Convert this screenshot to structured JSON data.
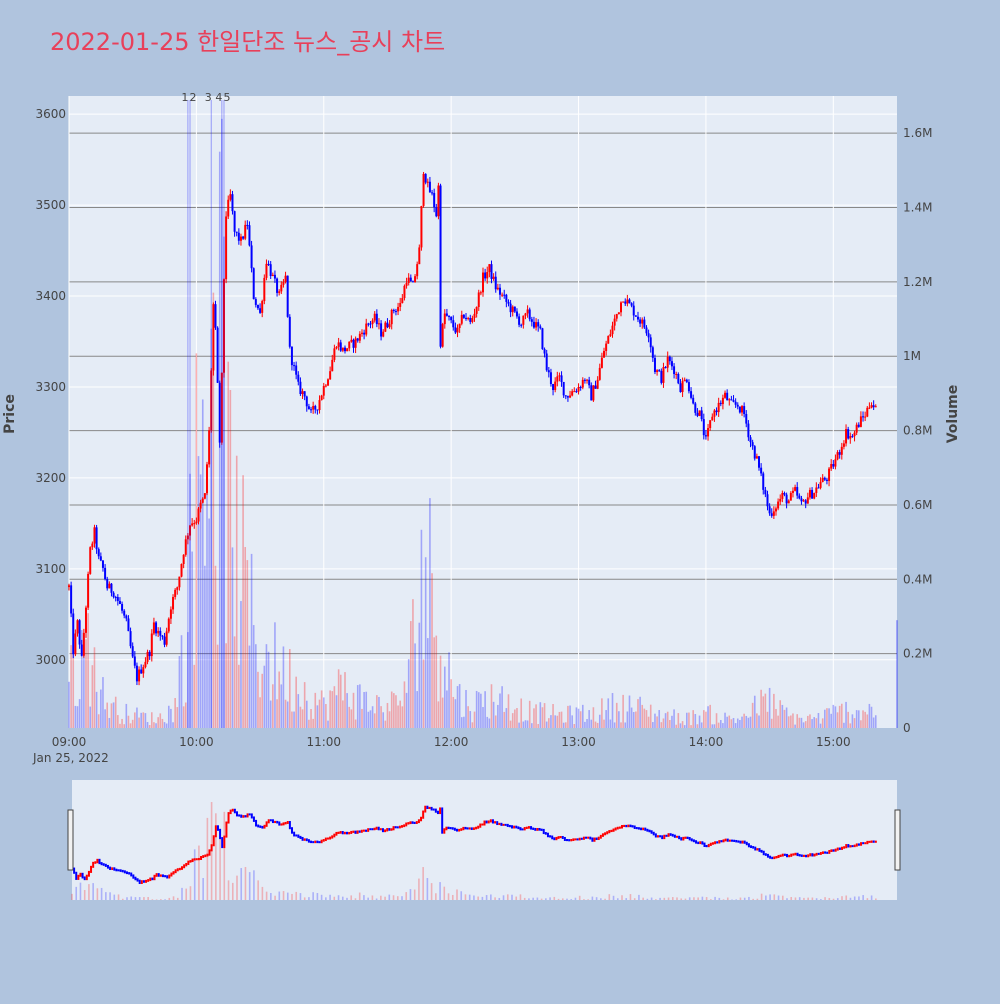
{
  "title": "2022-01-25 한일단조 뉴스_공시 차트",
  "colors": {
    "page_bg": "#b0c4de",
    "plot_bg": "#e5ecf6",
    "title": "#e8405a",
    "up": "#ff0000",
    "down": "#0000ff",
    "gridline": "#ffffff",
    "volume_grid": "#888888",
    "axis_text": "#444444"
  },
  "chart_data": {
    "type": "candlestick",
    "title": "2022-01-25 한일단조 뉴스_공시 차트",
    "date_label": "Jan 25, 2022",
    "x_ticks": [
      "09:00",
      "10:00",
      "11:00",
      "12:00",
      "13:00",
      "14:00",
      "15:00"
    ],
    "x_range": [
      "09:00",
      "15:30"
    ],
    "price_axis": {
      "label": "Price",
      "ticks": [
        3000,
        3100,
        3200,
        3300,
        3400,
        3500,
        3600
      ],
      "range": [
        2925,
        3620
      ]
    },
    "volume_axis": {
      "label": "Volume",
      "ticks": [
        "0",
        "0.2M",
        "0.4M",
        "0.6M",
        "0.8M",
        "1M",
        "1.2M",
        "1.4M",
        "1.6M"
      ],
      "tick_values": [
        0,
        200000,
        400000,
        600000,
        800000,
        1000000,
        1200000,
        1400000,
        1600000
      ],
      "range": [
        0,
        1700000
      ]
    },
    "news_markers": [
      {
        "label": "1",
        "time": "09:56"
      },
      {
        "label": "2",
        "time": "09:57"
      },
      {
        "label": "3",
        "time": "10:07"
      },
      {
        "label": "4",
        "time": "10:12"
      },
      {
        "label": "5",
        "time": "10:13"
      }
    ],
    "price_path": [
      [
        "09:00",
        3080
      ],
      [
        "09:02",
        3010
      ],
      [
        "09:04",
        3040
      ],
      [
        "09:06",
        3000
      ],
      [
        "09:08",
        3060
      ],
      [
        "09:10",
        3120
      ],
      [
        "09:12",
        3140
      ],
      [
        "09:14",
        3110
      ],
      [
        "09:16",
        3100
      ],
      [
        "09:18",
        3080
      ],
      [
        "09:21",
        3075
      ],
      [
        "09:24",
        3060
      ],
      [
        "09:27",
        3040
      ],
      [
        "09:30",
        3000
      ],
      [
        "09:32",
        2980
      ],
      [
        "09:34",
        2990
      ],
      [
        "09:38",
        3010
      ],
      [
        "09:40",
        3040
      ],
      [
        "09:42",
        3030
      ],
      [
        "09:45",
        3020
      ],
      [
        "09:48",
        3060
      ],
      [
        "09:51",
        3080
      ],
      [
        "09:54",
        3120
      ],
      [
        "09:57",
        3150
      ],
      [
        "10:00",
        3155
      ],
      [
        "10:02",
        3170
      ],
      [
        "10:04",
        3180
      ],
      [
        "10:06",
        3250
      ],
      [
        "10:07",
        3320
      ],
      [
        "10:08",
        3390
      ],
      [
        "10:09",
        3360
      ],
      [
        "10:10",
        3300
      ],
      [
        "10:11",
        3240
      ],
      [
        "10:12",
        3310
      ],
      [
        "10:13",
        3420
      ],
      [
        "10:14",
        3490
      ],
      [
        "10:16",
        3510
      ],
      [
        "10:18",
        3470
      ],
      [
        "10:21",
        3460
      ],
      [
        "10:24",
        3480
      ],
      [
        "10:27",
        3400
      ],
      [
        "10:30",
        3380
      ],
      [
        "10:33",
        3440
      ],
      [
        "10:36",
        3420
      ],
      [
        "10:39",
        3400
      ],
      [
        "10:42",
        3420
      ],
      [
        "10:44",
        3340
      ],
      [
        "10:46",
        3320
      ],
      [
        "10:48",
        3300
      ],
      [
        "10:51",
        3290
      ],
      [
        "10:54",
        3270
      ],
      [
        "10:57",
        3280
      ],
      [
        "11:00",
        3300
      ],
      [
        "11:03",
        3320
      ],
      [
        "11:06",
        3350
      ],
      [
        "11:09",
        3340
      ],
      [
        "11:12",
        3345
      ],
      [
        "11:15",
        3350
      ],
      [
        "11:18",
        3360
      ],
      [
        "11:21",
        3370
      ],
      [
        "11:24",
        3375
      ],
      [
        "11:27",
        3360
      ],
      [
        "11:30",
        3370
      ],
      [
        "11:33",
        3385
      ],
      [
        "11:36",
        3390
      ],
      [
        "11:39",
        3420
      ],
      [
        "11:42",
        3410
      ],
      [
        "11:45",
        3450
      ],
      [
        "11:47",
        3540
      ],
      [
        "11:49",
        3520
      ],
      [
        "11:51",
        3510
      ],
      [
        "11:53",
        3490
      ],
      [
        "11:54",
        3520
      ],
      [
        "11:55",
        3350
      ],
      [
        "11:57",
        3380
      ],
      [
        "12:00",
        3370
      ],
      [
        "12:03",
        3360
      ],
      [
        "12:06",
        3380
      ],
      [
        "12:09",
        3370
      ],
      [
        "12:12",
        3390
      ],
      [
        "12:15",
        3420
      ],
      [
        "12:18",
        3430
      ],
      [
        "12:21",
        3410
      ],
      [
        "12:24",
        3400
      ],
      [
        "12:27",
        3390
      ],
      [
        "12:30",
        3380
      ],
      [
        "12:33",
        3370
      ],
      [
        "12:36",
        3380
      ],
      [
        "12:39",
        3370
      ],
      [
        "12:42",
        3360
      ],
      [
        "12:45",
        3320
      ],
      [
        "12:48",
        3300
      ],
      [
        "12:51",
        3310
      ],
      [
        "12:54",
        3290
      ],
      [
        "12:57",
        3295
      ],
      [
        "13:00",
        3300
      ],
      [
        "13:03",
        3310
      ],
      [
        "13:06",
        3290
      ],
      [
        "13:09",
        3310
      ],
      [
        "13:12",
        3340
      ],
      [
        "13:15",
        3360
      ],
      [
        "13:18",
        3380
      ],
      [
        "13:21",
        3400
      ],
      [
        "13:24",
        3390
      ],
      [
        "13:27",
        3380
      ],
      [
        "13:30",
        3370
      ],
      [
        "13:33",
        3360
      ],
      [
        "13:36",
        3320
      ],
      [
        "13:39",
        3310
      ],
      [
        "13:42",
        3330
      ],
      [
        "13:45",
        3320
      ],
      [
        "13:48",
        3300
      ],
      [
        "13:51",
        3310
      ],
      [
        "13:54",
        3280
      ],
      [
        "13:57",
        3270
      ],
      [
        "14:00",
        3240
      ],
      [
        "14:03",
        3270
      ],
      [
        "14:06",
        3280
      ],
      [
        "14:09",
        3290
      ],
      [
        "14:12",
        3280
      ],
      [
        "14:15",
        3280
      ],
      [
        "14:18",
        3270
      ],
      [
        "14:21",
        3240
      ],
      [
        "14:24",
        3220
      ],
      [
        "14:27",
        3190
      ],
      [
        "14:30",
        3160
      ],
      [
        "14:33",
        3170
      ],
      [
        "14:36",
        3180
      ],
      [
        "14:39",
        3175
      ],
      [
        "14:42",
        3185
      ],
      [
        "14:45",
        3170
      ],
      [
        "14:48",
        3180
      ],
      [
        "14:51",
        3185
      ],
      [
        "14:54",
        3195
      ],
      [
        "14:57",
        3200
      ],
      [
        "15:00",
        3215
      ],
      [
        "15:03",
        3230
      ],
      [
        "15:06",
        3250
      ],
      [
        "15:09",
        3245
      ],
      [
        "15:12",
        3260
      ],
      [
        "15:15",
        3270
      ],
      [
        "15:18",
        3285
      ],
      [
        "15:20",
        3275
      ]
    ],
    "volume_profile": [
      [
        "09:00",
        120000
      ],
      [
        "09:05",
        180000
      ],
      [
        "09:10",
        220000
      ],
      [
        "09:15",
        90000
      ],
      [
        "09:20",
        60000
      ],
      [
        "09:25",
        40000
      ],
      [
        "09:30",
        35000
      ],
      [
        "09:35",
        30000
      ],
      [
        "09:40",
        25000
      ],
      [
        "09:45",
        30000
      ],
      [
        "09:50",
        60000
      ],
      [
        "09:55",
        250000
      ],
      [
        "10:00",
        650000
      ],
      [
        "10:05",
        900000
      ],
      [
        "10:08",
        1200000
      ],
      [
        "10:10",
        700000
      ],
      [
        "10:12",
        1100000
      ],
      [
        "10:15",
        600000
      ],
      [
        "10:20",
        450000
      ],
      [
        "10:25",
        300000
      ],
      [
        "10:30",
        200000
      ],
      [
        "10:35",
        180000
      ],
      [
        "10:40",
        150000
      ],
      [
        "10:45",
        130000
      ],
      [
        "10:50",
        100000
      ],
      [
        "10:55",
        80000
      ],
      [
        "11:00",
        60000
      ],
      [
        "11:05",
        90000
      ],
      [
        "11:10",
        110000
      ],
      [
        "11:15",
        80000
      ],
      [
        "11:20",
        70000
      ],
      [
        "11:25",
        60000
      ],
      [
        "11:30",
        55000
      ],
      [
        "11:35",
        70000
      ],
      [
        "11:40",
        120000
      ],
      [
        "11:45",
        420000
      ],
      [
        "11:50",
        380000
      ],
      [
        "11:55",
        250000
      ],
      [
        "12:00",
        120000
      ],
      [
        "12:05",
        70000
      ],
      [
        "12:10",
        60000
      ],
      [
        "12:15",
        70000
      ],
      [
        "12:20",
        80000
      ],
      [
        "12:25",
        70000
      ],
      [
        "12:30",
        60000
      ],
      [
        "12:35",
        45000
      ],
      [
        "12:40",
        40000
      ],
      [
        "12:45",
        40000
      ],
      [
        "12:50",
        35000
      ],
      [
        "12:55",
        35000
      ],
      [
        "13:00",
        40000
      ],
      [
        "13:05",
        35000
      ],
      [
        "13:10",
        45000
      ],
      [
        "13:15",
        55000
      ],
      [
        "13:20",
        60000
      ],
      [
        "13:25",
        55000
      ],
      [
        "13:30",
        50000
      ],
      [
        "13:35",
        40000
      ],
      [
        "13:40",
        35000
      ],
      [
        "13:45",
        30000
      ],
      [
        "13:50",
        25000
      ],
      [
        "13:55",
        30000
      ],
      [
        "14:00",
        40000
      ],
      [
        "14:05",
        30000
      ],
      [
        "14:10",
        25000
      ],
      [
        "14:15",
        25000
      ],
      [
        "14:20",
        40000
      ],
      [
        "14:25",
        60000
      ],
      [
        "14:30",
        70000
      ],
      [
        "14:35",
        45000
      ],
      [
        "14:40",
        30000
      ],
      [
        "14:45",
        25000
      ],
      [
        "14:50",
        25000
      ],
      [
        "14:55",
        30000
      ],
      [
        "15:00",
        40000
      ],
      [
        "15:05",
        45000
      ],
      [
        "15:10",
        45000
      ],
      [
        "15:15",
        50000
      ],
      [
        "15:20",
        45000
      ],
      [
        "15:30",
        290000
      ]
    ]
  }
}
